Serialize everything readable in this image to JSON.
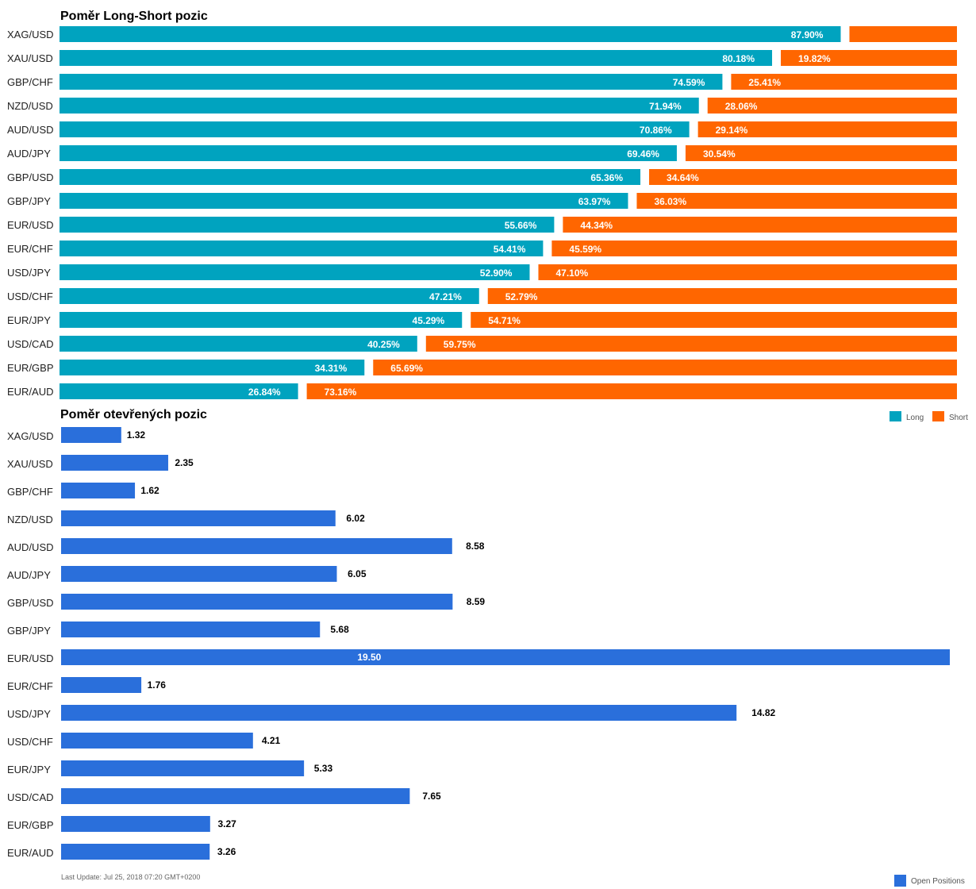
{
  "chart_data": [
    {
      "type": "bar",
      "orientation": "horizontal",
      "stacked_percent": true,
      "title": "Poměr Long-Short pozic",
      "categories": [
        "XAG/USD",
        "XAU/USD",
        "GBP/CHF",
        "NZD/USD",
        "AUD/USD",
        "AUD/JPY",
        "GBP/USD",
        "GBP/JPY",
        "EUR/USD",
        "EUR/CHF",
        "USD/JPY",
        "USD/CHF",
        "EUR/JPY",
        "USD/CAD",
        "EUR/GBP",
        "EUR/AUD"
      ],
      "series": [
        {
          "name": "Long",
          "color": "#00a3bf",
          "values": [
            87.9,
            80.18,
            74.59,
            71.94,
            70.86,
            69.46,
            65.36,
            63.97,
            55.66,
            54.41,
            52.9,
            47.21,
            45.29,
            40.25,
            34.31,
            26.84
          ],
          "labels": [
            "87.90%",
            "80.18%",
            "74.59%",
            "71.94%",
            "70.86%",
            "69.46%",
            "65.36%",
            "63.97%",
            "55.66%",
            "54.41%",
            "52.90%",
            "47.21%",
            "45.29%",
            "40.25%",
            "34.31%",
            "26.84%"
          ]
        },
        {
          "name": "Short",
          "color": "#ff6600",
          "values": [
            12.1,
            19.82,
            25.41,
            28.06,
            29.14,
            30.54,
            34.64,
            36.03,
            44.34,
            45.59,
            47.1,
            52.79,
            54.71,
            59.75,
            65.69,
            73.16
          ],
          "labels": [
            "",
            "19.82%",
            "25.41%",
            "28.06%",
            "29.14%",
            "30.54%",
            "34.64%",
            "36.03%",
            "44.34%",
            "45.59%",
            "47.10%",
            "52.79%",
            "54.71%",
            "59.75%",
            "65.69%",
            "73.16%"
          ]
        }
      ],
      "legend": {
        "position": "bottom-right",
        "items": [
          {
            "name": "Long",
            "color": "#00a3bf"
          },
          {
            "name": "Short",
            "color": "#ff6600"
          }
        ]
      }
    },
    {
      "type": "bar",
      "orientation": "horizontal",
      "title": "Poměr otevřených pozic",
      "categories": [
        "XAG/USD",
        "XAU/USD",
        "GBP/CHF",
        "NZD/USD",
        "AUD/USD",
        "AUD/JPY",
        "GBP/USD",
        "GBP/JPY",
        "EUR/USD",
        "EUR/CHF",
        "USD/JPY",
        "USD/CHF",
        "EUR/JPY",
        "USD/CAD",
        "EUR/GBP",
        "EUR/AUD"
      ],
      "series": [
        {
          "name": "Open Positions",
          "color": "#2a6fdb",
          "values": [
            1.32,
            2.35,
            1.62,
            6.02,
            8.58,
            6.05,
            8.59,
            5.68,
            19.5,
            1.76,
            14.82,
            4.21,
            5.33,
            7.65,
            3.27,
            3.26
          ],
          "labels": [
            "1.32",
            "2.35",
            "1.62",
            "6.02",
            "8.58",
            "6.05",
            "8.59",
            "5.68",
            "19.50",
            "1.76",
            "14.82",
            "4.21",
            "5.33",
            "7.65",
            "3.27",
            "3.26"
          ]
        }
      ],
      "xlim": [
        0,
        19.5
      ],
      "legend": {
        "position": "bottom-right",
        "items": [
          {
            "name": "Open Positions",
            "color": "#2a6fdb"
          }
        ]
      }
    }
  ],
  "footer": "Last Update: Jul 25, 2018 07:20 GMT+0200"
}
